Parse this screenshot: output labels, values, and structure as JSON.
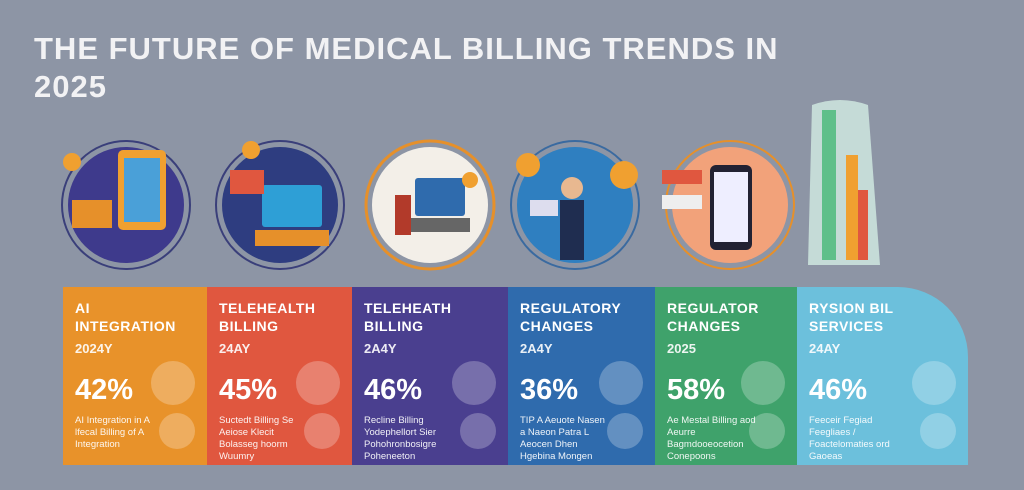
{
  "header": {
    "title": "THE FUTURE OF MEDICAL BILLING TRENDS IN 2025"
  },
  "panels": [
    {
      "title": "AI INTEGRATION",
      "year": "2024Y",
      "percent": "42%",
      "description": "AI Integration in A lfecal Billing of A Integration",
      "color": "#e8922a"
    },
    {
      "title": "TELEHEALTH BILLING",
      "year": "24AY",
      "percent": "45%",
      "description": "Suctedt Billing Se Aeiose Klecit Bolasseg hoorm Wuumry",
      "color": "#e0573f"
    },
    {
      "title": "TELEHEATH BILLING",
      "year": "2A4Y",
      "percent": "46%",
      "description": "Recline Billing Yodephellort Sier Pohohronbosigre Poheneeton",
      "color": "#4a3f8f"
    },
    {
      "title": "REGULATORY CHANGES",
      "year": "2A4Y",
      "percent": "36%",
      "description": "TIP A Aeuote Nasen a Naeon Patra L Aeocen Dhen Hgebina Mongen",
      "color": "#2f6bad"
    },
    {
      "title": "REGULATOR CHANGES",
      "year": "2025",
      "percent": "58%",
      "description": "Ae Mestal Billing aod Aeurre Bagmdooeocetion Conepoons",
      "color": "#3fa26b"
    },
    {
      "title": "RYSION BIL SERVICES",
      "year": "24AY",
      "percent": "46%",
      "description": "Feeceir Fegiad Feegliaes / Foactelomaties ord Gaoeas",
      "color": "#6cc0dc"
    }
  ]
}
